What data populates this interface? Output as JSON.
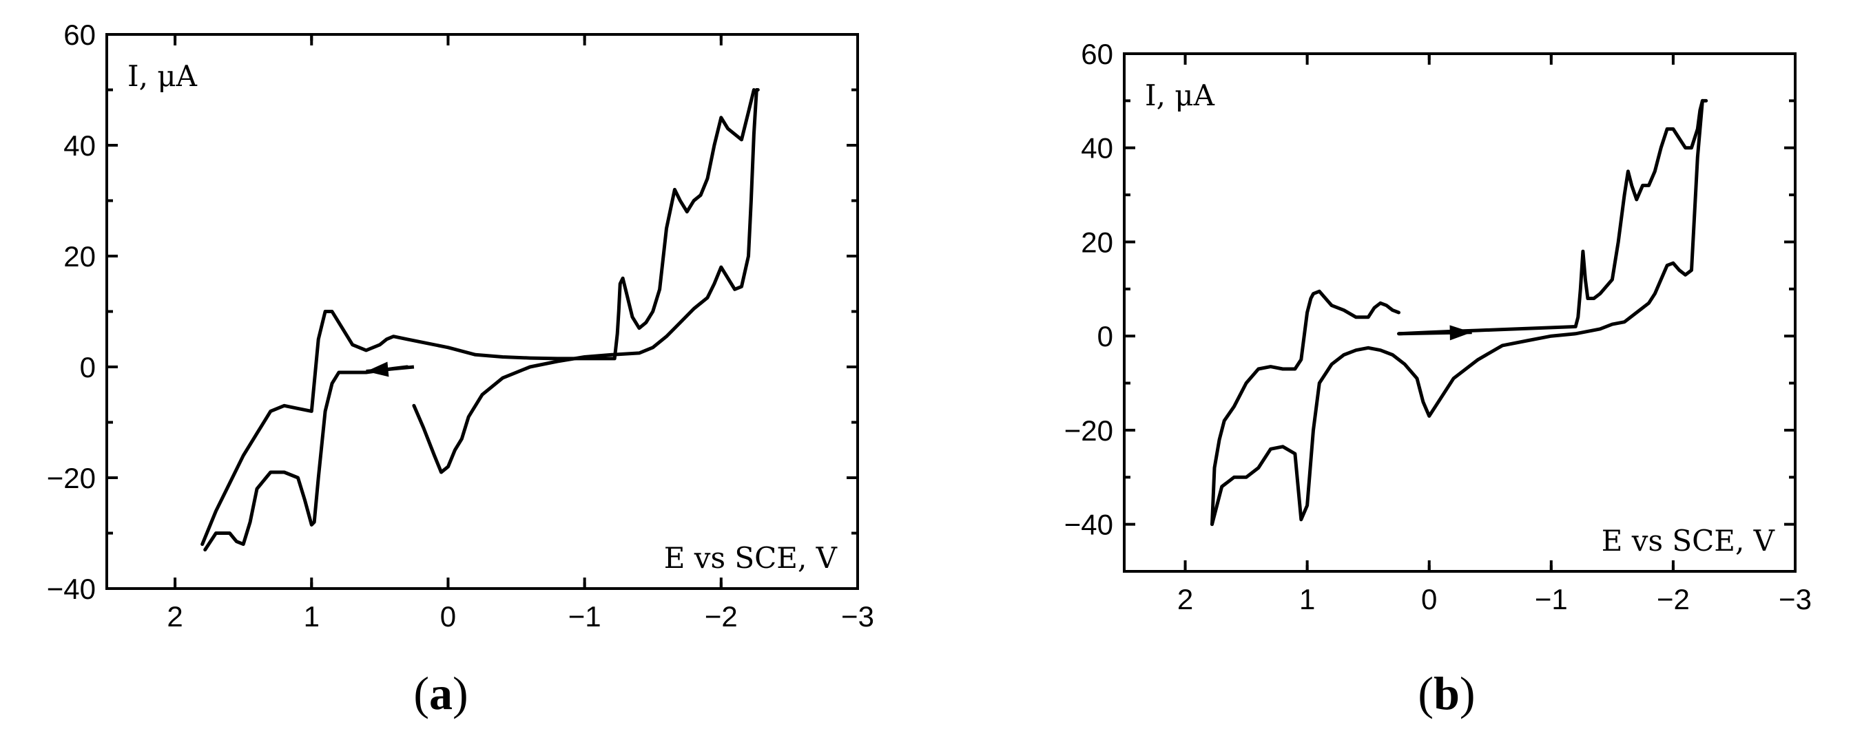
{
  "chart_data": [
    {
      "panel": "a",
      "type": "line",
      "caption_open": "(",
      "caption_letter": "a",
      "caption_close": ")",
      "ylabel": "I, μA",
      "xlabel": "E vs SCE, V",
      "xlim": [
        2.5,
        -3
      ],
      "ylim": [
        -40,
        60
      ],
      "xticks": [
        2,
        1,
        0,
        -1,
        -2,
        -3
      ],
      "xtick_labels": [
        "2",
        "1",
        "0",
        "−1",
        "−2",
        "−3"
      ],
      "yticks": [
        60,
        40,
        20,
        0,
        -20,
        -40
      ],
      "ytick_labels": [
        "60",
        "40",
        "20",
        "0",
        "−20",
        "−40"
      ],
      "arrow": {
        "from": [
          0.25,
          0
        ],
        "to": [
          0.6,
          -0.8
        ]
      },
      "series": [
        {
          "x": [
            0.25,
            0.18,
            0.1,
            0.05,
            0.0,
            -0.05,
            -0.1,
            -0.15,
            -0.25,
            -0.4,
            -0.6,
            -0.8,
            -1.0,
            -1.2,
            -1.4,
            -1.5,
            -1.6,
            -1.7,
            -1.8,
            -1.9,
            -1.95,
            -2.0,
            -2.05,
            -2.1,
            -2.15,
            -2.2,
            -2.22,
            -2.24,
            -2.26,
            -2.27
          ],
          "y": [
            -7,
            -11,
            -16,
            -19,
            -18,
            -15,
            -13,
            -9,
            -5,
            -2,
            0,
            1,
            1.8,
            2.2,
            2.5,
            3.5,
            5.5,
            8,
            10.5,
            12.5,
            15,
            18,
            16,
            14,
            14.5,
            20,
            30,
            42,
            50,
            50
          ]
        },
        {
          "x": [
            -2.24,
            -2.2,
            -2.15,
            -2.1,
            -2.05,
            -2.0,
            -1.95,
            -1.9,
            -1.85,
            -1.8,
            -1.75,
            -1.7,
            -1.66,
            -1.6,
            -1.55,
            -1.5,
            -1.45,
            -1.4,
            -1.35,
            -1.3,
            -1.28,
            -1.26,
            -1.25,
            -1.24,
            -1.22,
            -1.2,
            -1.0,
            -0.8,
            -0.6,
            -0.4,
            -0.2,
            0.0,
            0.2,
            0.3,
            0.4,
            0.45,
            0.5,
            0.6,
            0.7,
            0.8,
            0.85,
            0.9,
            0.95,
            1.0,
            1.1,
            1.2,
            1.3,
            1.4,
            1.5,
            1.6,
            1.7,
            1.8
          ],
          "y": [
            50,
            46,
            41,
            42,
            43,
            45,
            40,
            34,
            31,
            30,
            28,
            30,
            32,
            25,
            14,
            10,
            8,
            7,
            9,
            14,
            16,
            15,
            10,
            6,
            1.5,
            1.5,
            1.5,
            1.5,
            1.6,
            1.8,
            2.2,
            3.5,
            4.5,
            5,
            5.5,
            5,
            4,
            3,
            4,
            8,
            10,
            10,
            5,
            -8,
            -7.5,
            -7,
            -8,
            -12,
            -16,
            -21,
            -26,
            -32
          ]
        },
        {
          "x": [
            1.78,
            1.7,
            1.65,
            1.6,
            1.55,
            1.5,
            1.45,
            1.4,
            1.3,
            1.2,
            1.1,
            1.05,
            1.0,
            0.98,
            0.95,
            0.9,
            0.85,
            0.8,
            0.6,
            0.4,
            0.3
          ],
          "y": [
            -33,
            -30,
            -30,
            -30,
            -31.5,
            -32,
            -28,
            -22,
            -19,
            -19,
            -20,
            -24,
            -28.5,
            -28,
            -20,
            -8,
            -3,
            -1,
            -1,
            -0.3,
            0
          ]
        }
      ]
    },
    {
      "panel": "b",
      "type": "line",
      "caption_open": "(",
      "caption_letter": "b",
      "caption_close": ")",
      "ylabel": "I, μA",
      "xlabel": "E vs SCE, V",
      "xlim": [
        2.5,
        -3
      ],
      "ylim": [
        -50,
        60
      ],
      "xticks": [
        2,
        1,
        0,
        -1,
        -2,
        -3
      ],
      "xtick_labels": [
        "2",
        "1",
        "0",
        "−1",
        "−2",
        "−3"
      ],
      "yticks": [
        60,
        40,
        20,
        0,
        -20,
        -40
      ],
      "ytick_labels": [
        "60",
        "40",
        "20",
        "0",
        "−20",
        "−40"
      ],
      "arrow": {
        "from": [
          0.25,
          0.5
        ],
        "to": [
          -0.35,
          0.8
        ]
      },
      "series": [
        {
          "x": [
            0.25,
            0.0,
            -0.2,
            -0.4,
            -0.6,
            -0.8,
            -1.0,
            -1.2,
            -1.22,
            -1.24,
            -1.26,
            -1.28,
            -1.3,
            -1.35,
            -1.4,
            -1.5,
            -1.55,
            -1.6,
            -1.63,
            -1.66,
            -1.7,
            -1.75,
            -1.8,
            -1.85,
            -1.9,
            -1.95,
            -2.0,
            -2.05,
            -2.1,
            -2.15,
            -2.2,
            -2.22,
            -2.24,
            -2.26,
            -2.27
          ],
          "y": [
            0.5,
            0.8,
            1,
            1.2,
            1.4,
            1.6,
            1.8,
            2,
            4,
            10,
            18,
            12,
            8,
            8,
            9,
            12,
            20,
            30,
            35,
            32,
            29,
            32,
            32,
            35,
            40,
            44,
            44,
            42,
            40,
            40,
            44,
            48,
            50,
            50,
            50
          ]
        },
        {
          "x": [
            -2.24,
            -2.2,
            -2.15,
            -2.1,
            -2.05,
            -2.0,
            -1.95,
            -1.9,
            -1.85,
            -1.8,
            -1.7,
            -1.6,
            -1.5,
            -1.4,
            -1.2,
            -1.0,
            -0.8,
            -0.6,
            -0.4,
            -0.2,
            -0.05,
            0.0,
            0.05,
            0.1,
            0.2,
            0.3,
            0.4,
            0.5,
            0.6,
            0.7,
            0.8,
            0.9,
            0.95,
            1.0,
            1.05,
            1.1,
            1.2,
            1.3,
            1.4,
            1.5,
            1.6,
            1.7,
            1.78
          ],
          "y": [
            50,
            38,
            14,
            13,
            14,
            15.5,
            15,
            12,
            9,
            7,
            5,
            3,
            2.5,
            1.5,
            0.5,
            0,
            -1,
            -2,
            -5,
            -9,
            -15,
            -17,
            -14,
            -9,
            -6,
            -4,
            -3,
            -2.5,
            -3,
            -4,
            -6,
            -10,
            -20,
            -36,
            -39,
            -25,
            -23.5,
            -24,
            -28,
            -30,
            -30,
            -32,
            -40
          ]
        },
        {
          "x": [
            1.78,
            1.76,
            1.72,
            1.68,
            1.6,
            1.5,
            1.4,
            1.3,
            1.2,
            1.1,
            1.05,
            1.0,
            0.97,
            0.95,
            0.9,
            0.85,
            0.8,
            0.7,
            0.6,
            0.5,
            0.45,
            0.4,
            0.35,
            0.3,
            0.25
          ],
          "y": [
            -40,
            -28,
            -22,
            -18,
            -15,
            -10,
            -7,
            -6.5,
            -7,
            -7,
            -5,
            5,
            8,
            9,
            9.5,
            8,
            6.5,
            5.5,
            4,
            4,
            6,
            7,
            6.5,
            5.5,
            5
          ]
        }
      ]
    }
  ]
}
